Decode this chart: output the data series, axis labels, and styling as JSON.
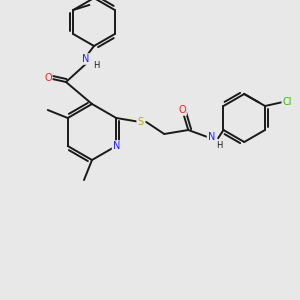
{
  "bg_color": "#e8e8e8",
  "bond_color": "#1a1a1a",
  "bond_width": 1.4,
  "atom_colors": {
    "N": "#2020ff",
    "O": "#ff2020",
    "S": "#bbaa00",
    "Cl": "#33bb00",
    "C": "#1a1a1a",
    "H": "#1a1a1a"
  },
  "font_size": 7.0,
  "img_size": 300
}
